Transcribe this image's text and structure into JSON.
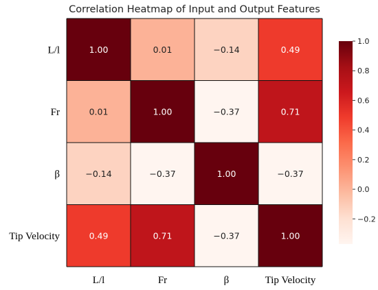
{
  "chart_data": {
    "type": "heatmap",
    "title": "Correlation Heatmap of Input and Output Features",
    "row_labels": [
      "L/l",
      "Fr",
      "β",
      "Tip Velocity"
    ],
    "col_labels": [
      "L/l",
      "Fr",
      "β",
      "Tip Velocity"
    ],
    "values": [
      [
        1.0,
        0.01,
        -0.14,
        0.49
      ],
      [
        0.01,
        1.0,
        -0.37,
        0.71
      ],
      [
        -0.14,
        -0.37,
        1.0,
        -0.37
      ],
      [
        0.49,
        0.71,
        -0.37,
        1.0
      ]
    ],
    "annotations": [
      [
        "1.00",
        "0.01",
        "−0.14",
        "0.49"
      ],
      [
        "0.01",
        "1.00",
        "−0.37",
        "0.71"
      ],
      [
        "−0.14",
        "−0.37",
        "1.00",
        "−0.37"
      ],
      [
        "0.49",
        "0.71",
        "−0.37",
        "1.00"
      ]
    ],
    "colormap": "Reds",
    "vmin": -0.37,
    "vmax": 1.0,
    "colorbar": {
      "position": "right",
      "ticks": [
        1.0,
        0.8,
        0.6,
        0.4,
        0.2,
        0.0,
        -0.2
      ],
      "tick_labels": [
        "1.0",
        "0.8",
        "0.6",
        "0.4",
        "0.2",
        "0.0",
        "−0.2"
      ]
    },
    "grid": true,
    "legend": "none"
  }
}
